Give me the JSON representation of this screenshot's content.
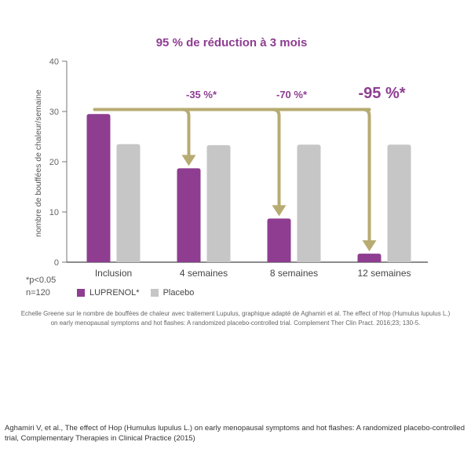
{
  "chart_data": {
    "type": "bar",
    "title": "95 % de réduction à 3 mois",
    "ylabel": "nombre de bouffées de chaleur/semaine",
    "xlabel": "",
    "ylim": [
      0,
      40
    ],
    "yticks": [
      0,
      10,
      20,
      30,
      40
    ],
    "categories": [
      "Inclusion",
      "4 semaines",
      "8 semaines",
      "12 semaines"
    ],
    "series": [
      {
        "name": "LUPRENOL*",
        "color": "#8e3d91",
        "values": [
          29.5,
          18.7,
          8.7,
          1.7
        ]
      },
      {
        "name": "Placebo",
        "color": "#c7c6c6",
        "values": [
          23.5,
          23.3,
          23.4,
          23.4
        ]
      }
    ],
    "annotations": [
      {
        "label": "-35 %*",
        "category_index": 1
      },
      {
        "label": "-70 %*",
        "category_index": 2
      },
      {
        "label": "-95 %*",
        "category_index": 3
      }
    ],
    "arrow_color": "#b7ab72",
    "grid": false
  },
  "notes": {
    "pvalue": "*p<0.05",
    "n": "n=120"
  },
  "legend": {
    "items": [
      {
        "label": "LUPRENOL*",
        "color": "#8e3d91"
      },
      {
        "label": "Placebo",
        "color": "#c7c6c6"
      }
    ]
  },
  "source": {
    "line1": "Echelle Greene sur le nombre de bouffées de chaleur avec traitement Lupulus, graphique adapté de Aghamiri et al. The effect of Hop (Humulus lupulus L.)",
    "line2": "on early menopausal symptoms and hot flashes: A randomized placebo-controlled trial. Complement Ther Clin Pract. 2016;23; 130-5."
  },
  "reference": {
    "text": "Aghamiri V, et al., The effect of Hop (Humulus lupulus L.) on early menopausal symptoms and hot flashes: A randomized placebo-controlled trial, Complementary Therapies in Clinical Practice (2015)"
  }
}
